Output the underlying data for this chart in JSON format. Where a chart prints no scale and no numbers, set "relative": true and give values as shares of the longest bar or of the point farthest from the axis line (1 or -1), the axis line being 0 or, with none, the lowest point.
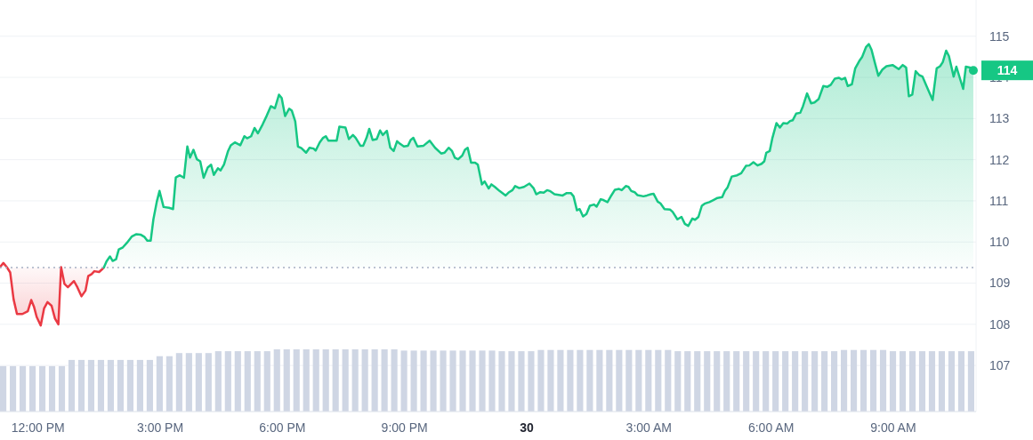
{
  "chart_data": [
    {
      "type": "area",
      "xlim": [
        "--01-29T11:04",
        "--01-30T11:02"
      ],
      "ylim": [
        105.88,
        115.88
      ],
      "xticks": [
        {
          "value": "--01-29T12:00",
          "label": "12:00 PM"
        },
        {
          "value": "--01-29T15:00",
          "label": "3:00 PM"
        },
        {
          "value": "--01-29T18:00",
          "label": "6:00 PM"
        },
        {
          "value": "--01-29T21:00",
          "label": "9:00 PM"
        },
        {
          "value": "--01-30T00:00",
          "label": "30"
        },
        {
          "value": "--01-30T03:00",
          "label": "3:00 AM"
        },
        {
          "value": "--01-30T06:00",
          "label": "6:00 AM"
        },
        {
          "value": "--01-30T09:00",
          "label": "9:00 AM"
        }
      ],
      "yticks": [
        107,
        108,
        109,
        110,
        111,
        112,
        113,
        114,
        115
      ],
      "grid": "y",
      "ref_lines": [
        {
          "axis": "y",
          "value": 109.38,
          "line_style": "dotted",
          "color": "#a6b0c3"
        }
      ],
      "annotations": [
        {
          "text": "114",
          "x": "--01-30T10:58",
          "y": 114.17
        }
      ],
      "series": [
        {
          "color": "#ea3943",
          "x": [
            "--01-29T11:04",
            "--01-29T11:09",
            "--01-29T11:14",
            "--01-29T11:19",
            "--01-29T11:24",
            "--01-29T11:29",
            "--01-29T11:37",
            "--01-29T11:45",
            "--01-29T11:50",
            "--01-29T11:54",
            "--01-29T11:58",
            "--01-29T12:04",
            "--01-29T12:09",
            "--01-29T12:14",
            "--01-29T12:20",
            "--01-29T12:25",
            "--01-29T12:30",
            "--01-29T12:34",
            "--01-29T12:39",
            "--01-29T12:44",
            "--01-29T12:53",
            "--01-29T12:58",
            "--01-29T13:04",
            "--01-29T13:10",
            "--01-29T13:14",
            "--01-29T13:19",
            "--01-29T13:23",
            "--01-29T13:30",
            "--01-29T13:34",
            "--01-29T13:37"
          ],
          "values": [
            109.39,
            109.49,
            109.39,
            109.26,
            108.61,
            108.25,
            108.25,
            108.32,
            108.59,
            108.43,
            108.18,
            107.97,
            108.39,
            108.54,
            108.45,
            108.14,
            108.0,
            109.39,
            108.98,
            108.9,
            109.05,
            108.9,
            108.68,
            108.82,
            109.17,
            109.22,
            109.29,
            109.27,
            109.33,
            109.38
          ]
        },
        {
          "color": "#16c784",
          "x": [
            "--01-29T13:37",
            "--01-29T13:41",
            "--01-29T13:46",
            "--01-29T13:50",
            "--01-29T13:55",
            "--01-29T13:59",
            "--01-29T14:05",
            "--01-29T14:11",
            "--01-29T14:18",
            "--01-29T14:25",
            "--01-29T14:31",
            "--01-29T14:37",
            "--01-29T14:41",
            "--01-29T14:46",
            "--01-29T14:50",
            "--01-29T14:55",
            "--01-29T14:59",
            "--01-29T15:05",
            "--01-29T15:13",
            "--01-29T15:19",
            "--01-29T15:23",
            "--01-29T15:29",
            "--01-29T15:35",
            "--01-29T15:40",
            "--01-29T15:44",
            "--01-29T15:49",
            "--01-29T15:54",
            "--01-29T15:59",
            "--01-29T16:04",
            "--01-29T16:10",
            "--01-29T16:15",
            "--01-29T16:19",
            "--01-29T16:25",
            "--01-29T16:29",
            "--01-29T16:34",
            "--01-29T16:40",
            "--01-29T16:44",
            "--01-29T16:50",
            "--01-29T16:58",
            "--01-29T17:04",
            "--01-29T17:08",
            "--01-29T17:14",
            "--01-29T17:19",
            "--01-29T17:24",
            "--01-29T17:31",
            "--01-29T17:37",
            "--01-29T17:43",
            "--01-29T17:49",
            "--01-29T17:55",
            "--01-29T17:59",
            "--01-29T18:04",
            "--01-29T18:10",
            "--01-29T18:14",
            "--01-29T18:19",
            "--01-29T18:23",
            "--01-29T18:28",
            "--01-29T18:35",
            "--01-29T18:40",
            "--01-29T18:46",
            "--01-29T18:49",
            "--01-29T18:55",
            "--01-29T19:00",
            "--01-29T19:04",
            "--01-29T19:08",
            "--01-29T19:20",
            "--01-29T19:24",
            "--01-29T19:33",
            "--01-29T19:38",
            "--01-29T19:44",
            "--01-29T19:48",
            "--01-29T19:55",
            "--01-29T19:59",
            "--01-29T20:04",
            "--01-29T20:08",
            "--01-29T20:13",
            "--01-29T20:19",
            "--01-29T20:24",
            "--01-29T20:28",
            "--01-29T20:34",
            "--01-29T20:39",
            "--01-29T20:44",
            "--01-29T20:49",
            "--01-29T20:53",
            "--01-29T20:59",
            "--01-29T21:05",
            "--01-29T21:09",
            "--01-29T21:13",
            "--01-29T21:19",
            "--01-29T21:28",
            "--01-29T21:37",
            "--01-29T21:45",
            "--01-29T21:54",
            "--01-29T21:59",
            "--01-29T22:05",
            "--01-29T22:10",
            "--01-29T22:14",
            "--01-29T22:19",
            "--01-29T22:25",
            "--01-29T22:29",
            "--01-29T22:33",
            "--01-29T22:38",
            "--01-29T22:44",
            "--01-29T22:48",
            "--01-29T22:54",
            "--01-29T22:58",
            "--01-29T23:04",
            "--01-29T23:08",
            "--01-29T23:13",
            "--01-29T23:20",
            "--01-29T23:29",
            "--01-29T23:34",
            "--01-29T23:39",
            "--01-29T23:43",
            "--01-29T23:49",
            "--01-29T23:56",
            "--01-30T00:04",
            "--01-30T00:10",
            "--01-30T00:14",
            "--01-30T00:20",
            "--01-30T00:25",
            "--01-30T00:30",
            "--01-30T00:34",
            "--01-30T00:41",
            "--01-30T00:53",
            "--01-30T00:59",
            "--01-30T01:05",
            "--01-30T01:09",
            "--01-30T01:14",
            "--01-30T01:18",
            "--01-30T01:23",
            "--01-30T01:28",
            "--01-30T01:33",
            "--01-30T01:39",
            "--01-30T01:43",
            "--01-30T01:49",
            "--01-30T01:53",
            "--01-30T01:59",
            "--01-30T02:05",
            "--01-30T02:10",
            "--01-30T02:16",
            "--01-30T02:20",
            "--01-30T02:26",
            "--01-30T02:30",
            "--01-30T02:34",
            "--01-30T02:39",
            "--01-30T02:43",
            "--01-30T02:52",
            "--01-30T02:57",
            "--01-30T03:03",
            "--01-30T03:07",
            "--01-30T03:13",
            "--01-30T03:17",
            "--01-30T03:23",
            "--01-30T03:31",
            "--01-30T03:35",
            "--01-30T03:42",
            "--01-30T03:48",
            "--01-30T03:53",
            "--01-30T03:58",
            "--01-30T04:04",
            "--01-30T04:08",
            "--01-30T04:13",
            "--01-30T04:18",
            "--01-30T04:22",
            "--01-30T04:29",
            "--01-30T04:35",
            "--01-30T04:41",
            "--01-30T04:48",
            "--01-30T04:52",
            "--01-30T04:56",
            "--01-30T05:02",
            "--01-30T05:10",
            "--01-30T05:16",
            "--01-30T05:23",
            "--01-30T05:28",
            "--01-30T05:34",
            "--01-30T05:40",
            "--01-30T05:46",
            "--01-30T05:50",
            "--01-30T05:53",
            "--01-30T05:58",
            "--01-30T06:02",
            "--01-30T06:08",
            "--01-30T06:13",
            "--01-30T06:18",
            "--01-30T06:24",
            "--01-30T06:28",
            "--01-30T06:32",
            "--01-30T06:37",
            "--01-30T06:43",
            "--01-30T06:47",
            "--01-30T06:53",
            "--01-30T06:59",
            "--01-30T07:04",
            "--01-30T07:10",
            "--01-30T07:17",
            "--01-30T07:23",
            "--01-30T07:28",
            "--01-30T07:34",
            "--01-30T07:40",
            "--01-30T07:44",
            "--01-30T07:49",
            "--01-30T07:53",
            "--01-30T07:59",
            "--01-30T08:04",
            "--01-30T08:10",
            "--01-30T08:14",
            "--01-30T08:20",
            "--01-30T08:24",
            "--01-30T08:28",
            "--01-30T08:33",
            "--01-30T08:38",
            "--01-30T08:44",
            "--01-30T08:50",
            "--01-30T08:59",
            "--01-30T09:08",
            "--01-30T09:14",
            "--01-30T09:19",
            "--01-30T09:23",
            "--01-30T09:28",
            "--01-30T09:33",
            "--01-30T09:38",
            "--01-30T09:43",
            "--01-30T09:49",
            "--01-30T09:58",
            "--01-30T10:04",
            "--01-30T10:09",
            "--01-30T10:13",
            "--01-30T10:18",
            "--01-30T10:22",
            "--01-30T10:29",
            "--01-30T10:33",
            "--01-30T10:43",
            "--01-30T10:47",
            "--01-30T10:53",
            "--01-30T10:58"
          ],
          "values": [
            109.38,
            109.53,
            109.65,
            109.54,
            109.58,
            109.82,
            109.87,
            109.98,
            110.13,
            110.19,
            110.18,
            110.12,
            110.03,
            110.03,
            110.55,
            110.98,
            111.24,
            110.85,
            110.83,
            110.8,
            111.57,
            111.62,
            111.56,
            112.32,
            112.05,
            112.24,
            112.01,
            111.96,
            111.56,
            111.81,
            111.88,
            111.63,
            111.79,
            111.74,
            111.88,
            112.21,
            112.35,
            112.42,
            112.35,
            112.57,
            112.52,
            112.57,
            112.77,
            112.64,
            112.86,
            113.07,
            113.3,
            113.25,
            113.58,
            113.5,
            113.06,
            113.24,
            113.19,
            112.93,
            112.32,
            112.28,
            112.17,
            112.29,
            112.27,
            112.22,
            112.42,
            112.53,
            112.57,
            112.46,
            112.46,
            112.8,
            112.78,
            112.5,
            112.6,
            112.53,
            112.34,
            112.34,
            112.53,
            112.75,
            112.48,
            112.5,
            112.71,
            112.6,
            112.7,
            112.29,
            112.21,
            112.45,
            112.39,
            112.32,
            112.34,
            112.48,
            112.53,
            112.32,
            112.34,
            112.46,
            112.29,
            112.15,
            112.17,
            112.29,
            112.21,
            112.05,
            112.01,
            112.1,
            112.24,
            112.29,
            111.93,
            111.93,
            111.88,
            111.4,
            111.47,
            111.3,
            111.4,
            111.34,
            111.24,
            111.13,
            111.21,
            111.26,
            111.36,
            111.31,
            111.34,
            111.42,
            111.31,
            111.16,
            111.21,
            111.2,
            111.26,
            111.24,
            111.16,
            111.13,
            111.19,
            111.19,
            111.11,
            110.77,
            110.8,
            110.62,
            110.68,
            110.88,
            110.91,
            110.86,
            111.04,
            111.02,
            110.97,
            111.14,
            111.27,
            111.29,
            111.26,
            111.36,
            111.34,
            111.24,
            111.21,
            111.14,
            111.11,
            111.13,
            111.16,
            111.17,
            110.98,
            110.94,
            110.8,
            110.79,
            110.73,
            110.55,
            110.61,
            110.44,
            110.39,
            110.57,
            110.54,
            110.61,
            110.88,
            110.93,
            110.97,
            111.02,
            111.07,
            111.09,
            111.24,
            111.33,
            111.59,
            111.62,
            111.67,
            111.85,
            111.86,
            111.94,
            111.86,
            111.9,
            111.96,
            112.17,
            112.21,
            112.53,
            112.89,
            112.78,
            112.89,
            112.88,
            112.94,
            112.96,
            113.12,
            113.14,
            113.3,
            113.61,
            113.37,
            113.39,
            113.47,
            113.79,
            113.77,
            113.82,
            113.97,
            113.99,
            113.95,
            113.99,
            113.79,
            113.83,
            114.22,
            114.4,
            114.49,
            114.74,
            114.81,
            114.67,
            114.35,
            114.04,
            114.19,
            114.27,
            114.3,
            114.2,
            114.3,
            114.24,
            113.54,
            113.58,
            114.15,
            114.06,
            114.02,
            113.79,
            113.45,
            114.22,
            114.27,
            114.37,
            114.65,
            114.52,
            114.02,
            114.26,
            113.72,
            114.26,
            114.24,
            114.17
          ]
        }
      ]
    },
    {
      "type": "bar",
      "relative": true,
      "color": "#cfd6e4",
      "categories": [
        null,
        null,
        null,
        null,
        null,
        null,
        null,
        null,
        null,
        null,
        null,
        null,
        null,
        null,
        null,
        null,
        null,
        null,
        null,
        null,
        null,
        null,
        null,
        null,
        null,
        null,
        null,
        null,
        null,
        null,
        null,
        null,
        null,
        null,
        null,
        null,
        null,
        null,
        null,
        null,
        null,
        null,
        null,
        null,
        null,
        null,
        null,
        null,
        null,
        null,
        null,
        null,
        null,
        null,
        null,
        null,
        null,
        null,
        null,
        null,
        null,
        null,
        null,
        null,
        null,
        null,
        null,
        null,
        null,
        null,
        null,
        null,
        null,
        null,
        null,
        null,
        null,
        null,
        null,
        null,
        null,
        null,
        null,
        null,
        null,
        null,
        null,
        null,
        null,
        null,
        null,
        null,
        null,
        null,
        null,
        null,
        null,
        null,
        null,
        null
      ],
      "values": [
        0.73,
        0.73,
        0.73,
        0.73,
        0.73,
        0.73,
        0.73,
        0.83,
        0.83,
        0.83,
        0.83,
        0.83,
        0.83,
        0.83,
        0.83,
        0.83,
        0.89,
        0.89,
        0.94,
        0.94,
        0.94,
        0.94,
        0.97,
        0.97,
        0.97,
        0.97,
        0.97,
        0.97,
        1,
        1,
        1,
        1,
        1,
        1,
        1,
        1,
        1,
        1,
        1,
        1,
        1,
        0.98,
        0.98,
        0.98,
        0.98,
        0.98,
        0.98,
        0.98,
        0.98,
        0.98,
        0.98,
        0.97,
        0.97,
        0.97,
        0.97,
        0.99,
        0.99,
        0.99,
        0.99,
        0.99,
        0.99,
        0.99,
        0.99,
        0.99,
        0.99,
        0.99,
        0.99,
        0.99,
        0.99,
        0.97,
        0.97,
        0.97,
        0.97,
        0.97,
        0.97,
        0.97,
        0.97,
        0.97,
        0.97,
        0.97,
        0.97,
        0.97,
        0.97,
        0.97,
        0.97,
        0.97,
        0.99,
        0.99,
        0.99,
        0.99,
        0.99,
        0.97,
        0.97,
        0.97,
        0.97,
        0.97,
        0.97,
        0.97,
        0.97,
        0.97
      ]
    }
  ]
}
